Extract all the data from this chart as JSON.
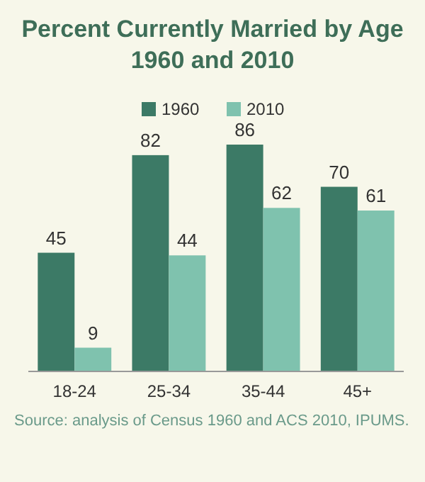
{
  "chart_data": {
    "type": "bar",
    "title": "Percent Currently Married by Age",
    "subtitle": "1960 and 2010",
    "categories": [
      "18-24",
      "25-34",
      "35-44",
      "45+"
    ],
    "series": [
      {
        "name": "1960",
        "color": "#3c7a66",
        "values": [
          45,
          82,
          86,
          70
        ]
      },
      {
        "name": "2010",
        "color": "#7fc2ae",
        "values": [
          9,
          44,
          62,
          61
        ]
      }
    ],
    "data_labels": true,
    "legend": "top",
    "annotations": [
      "Source: analysis of Census 1960 and ACS 2010, IPUMS."
    ]
  }
}
